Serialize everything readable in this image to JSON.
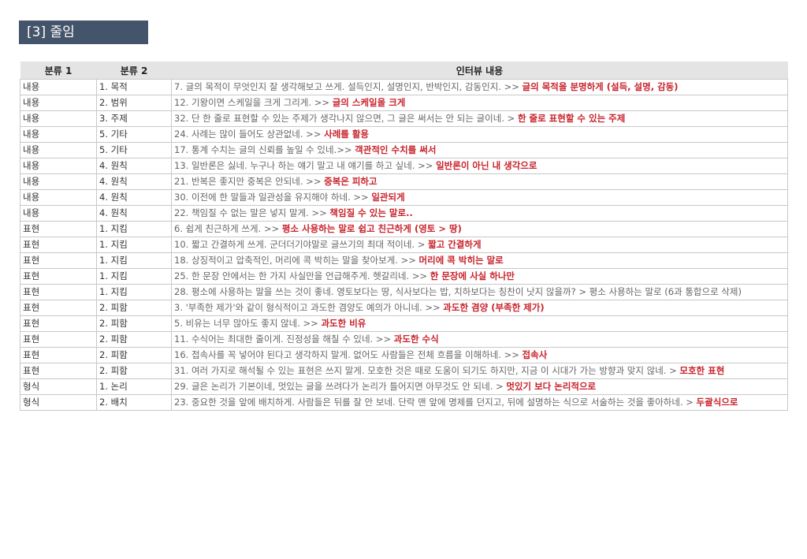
{
  "title": "[3] 줄임",
  "headers": [
    "분류 1",
    "분류 2",
    "인터뷰 내용"
  ],
  "rows": [
    {
      "c1": "내용",
      "c2": "1. 목적",
      "text": "7. 글의 목적이 무엇인지 잘 생각해보고 쓰게. 설득인지, 설명인지, 반박인지, 감동인지. >> ",
      "hl": "글의 목적을 분명하게 (설득, 설명, 감동)"
    },
    {
      "c1": "내용",
      "c2": "2. 범위",
      "text": "12. 기왕이면 스케일을 크게 그리게. >> ",
      "hl": "글의 스케일을 크게"
    },
    {
      "c1": "내용",
      "c2": "3. 주제",
      "text": "32. 단 한 줄로 표현할 수 있는 주제가 생각나지 않으면, 그 글은 써서는 안 되는 글이네. > ",
      "hl": "한 줄로 표현할 수 있는 주제"
    },
    {
      "c1": "내용",
      "c2": "5. 기타",
      "text": "24. 사례는 많이 들어도 상관없네. >> ",
      "hl": "사례를 활용"
    },
    {
      "c1": "내용",
      "c2": "5. 기타",
      "text": "17. 통계 수치는 글의 신뢰를 높일 수 있네.>> ",
      "hl": "객관적인 수치를 써서"
    },
    {
      "c1": "내용",
      "c2": "4. 원칙",
      "text": "13. 일반론은 싫네. 누구나 하는 얘기 말고 내 얘기를 하고 싶네. >> ",
      "hl": "일반론이 아닌 내 생각으로"
    },
    {
      "c1": "내용",
      "c2": "4. 원칙",
      "text": "21. 반복은 좋지만 중복은 안되네. >> ",
      "hl": "중복은 피하고"
    },
    {
      "c1": "내용",
      "c2": "4. 원칙",
      "text": "30. 이전에 한 말들과 일관성을 유지해야 하네. >> ",
      "hl": "일관되게"
    },
    {
      "c1": "내용",
      "c2": "4. 원칙",
      "text": "22. 책임질 수 없는 말은 넣지 말게. >> ",
      "hl": "책임질 수 있는 말로.."
    },
    {
      "c1": "표현",
      "c2": "1. 지킴",
      "text": "6. 쉽게 친근하게 쓰게. >> ",
      "hl": "평소 사용하는 말로 쉽고 친근하게 (영토 > 땅)"
    },
    {
      "c1": "표현",
      "c2": "1. 지킴",
      "text": "10. 짧고 간결하게 쓰게. 군더더기야말로 글쓰기의 최대 적이네. > ",
      "hl": "짧고 간결하게"
    },
    {
      "c1": "표현",
      "c2": "1. 지킴",
      "text": "18. 상징적이고 압축적인, 머리에 콕 박히는 말을 찾아보게. >> ",
      "hl": "머리에 콕 박히는 말로"
    },
    {
      "c1": "표현",
      "c2": "1. 지킴",
      "text": "25. 한 문장 안에서는 한 가지 사실만을 언급해주게. 헷갈리네. >> ",
      "hl": "한 문장에 사실 하나만"
    },
    {
      "c1": "표현",
      "c2": "1. 지킴",
      "text": "28. 평소에 사용하는 말을 쓰는 것이 좋네. 영토보다는 땅, 식사보다는 밥, 치하보다는 칭찬이 낫지 않을까? > 평소 사용하는 말로 (6과 통합으로 삭제)",
      "hl": ""
    },
    {
      "c1": "표현",
      "c2": "2. 피함",
      "text": "3. '부족한 제가'와 같이 형식적이고 과도한 겸양도 예의가 아니네. >> ",
      "hl": "과도한 겸양 (부족한 제가)"
    },
    {
      "c1": "표현",
      "c2": "2. 피함",
      "text": "5. 비유는 너무 많아도 좋지 않네. >> ",
      "hl": "과도한 비유"
    },
    {
      "c1": "표현",
      "c2": "2. 피함",
      "text": "11. 수식어는 최대한 줄이게. 진정성을 해칠 수 있네. >> ",
      "hl": "과도한 수식"
    },
    {
      "c1": "표현",
      "c2": "2. 피함",
      "text": "16. 접속사를 꼭 넣어야 된다고 생각하지 말게. 없어도 사람들은 전체 흐름을 이해하네. >> ",
      "hl": "접속사"
    },
    {
      "c1": "표현",
      "c2": "2. 피함",
      "text": "31. 여러 가지로 해석될 수 있는 표현은 쓰지 말게. 모호한 것은 때로 도움이 되기도 하지만, 지금 이 시대가 가는 방향과 맞지 않네. > ",
      "hl": "모호한 표현"
    },
    {
      "c1": "형식",
      "c2": "1. 논리",
      "text": "29. 글은 논리가 기본이네, 멋있는 글을 쓰려다가 논리가 틀어지면 아무것도 안 되네. > ",
      "hl": "멋있기 보다 논리적으로"
    },
    {
      "c1": "형식",
      "c2": "2. 배치",
      "text": "23. 중요한 것을 앞에 배치하게. 사람들은 뒤를 잘 안 보네. 단락 맨 앞에 명제를 던지고, 뒤에 설명하는 식으로 서술하는 것을 좋아하네. > ",
      "hl": "두괄식으로"
    }
  ]
}
